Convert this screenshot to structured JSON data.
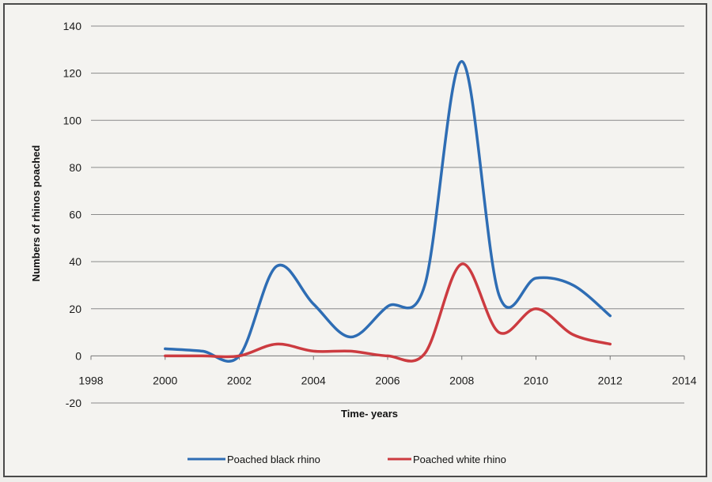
{
  "chart_data": {
    "type": "line",
    "title": "",
    "xlabel": "Time- years",
    "ylabel": "Numbers of rhinos poached",
    "xlim": [
      1998,
      2014
    ],
    "ylim": [
      -20,
      140
    ],
    "x_ticks": [
      1998,
      2000,
      2002,
      2004,
      2006,
      2008,
      2010,
      2012,
      2014
    ],
    "y_ticks": [
      -20,
      0,
      20,
      40,
      60,
      80,
      100,
      120,
      140
    ],
    "grid": true,
    "legend_position": "bottom",
    "series": [
      {
        "name": "Poached black rhino",
        "color": "#2e6db4",
        "x": [
          2000,
          2001,
          2002,
          2003,
          2004,
          2005,
          2006,
          2007,
          2008,
          2009,
          2010,
          2011,
          2012
        ],
        "y": [
          3,
          2,
          0,
          38,
          22,
          8,
          21,
          30,
          125,
          26,
          33,
          30,
          17
        ]
      },
      {
        "name": "Poached white rhino",
        "color": "#cc3b40",
        "x": [
          2000,
          2001,
          2002,
          2003,
          2004,
          2005,
          2006,
          2007,
          2008,
          2009,
          2010,
          2011,
          2012
        ],
        "y": [
          0,
          0,
          0,
          5,
          2,
          2,
          0,
          1,
          39,
          10,
          20,
          9,
          5
        ]
      }
    ]
  }
}
